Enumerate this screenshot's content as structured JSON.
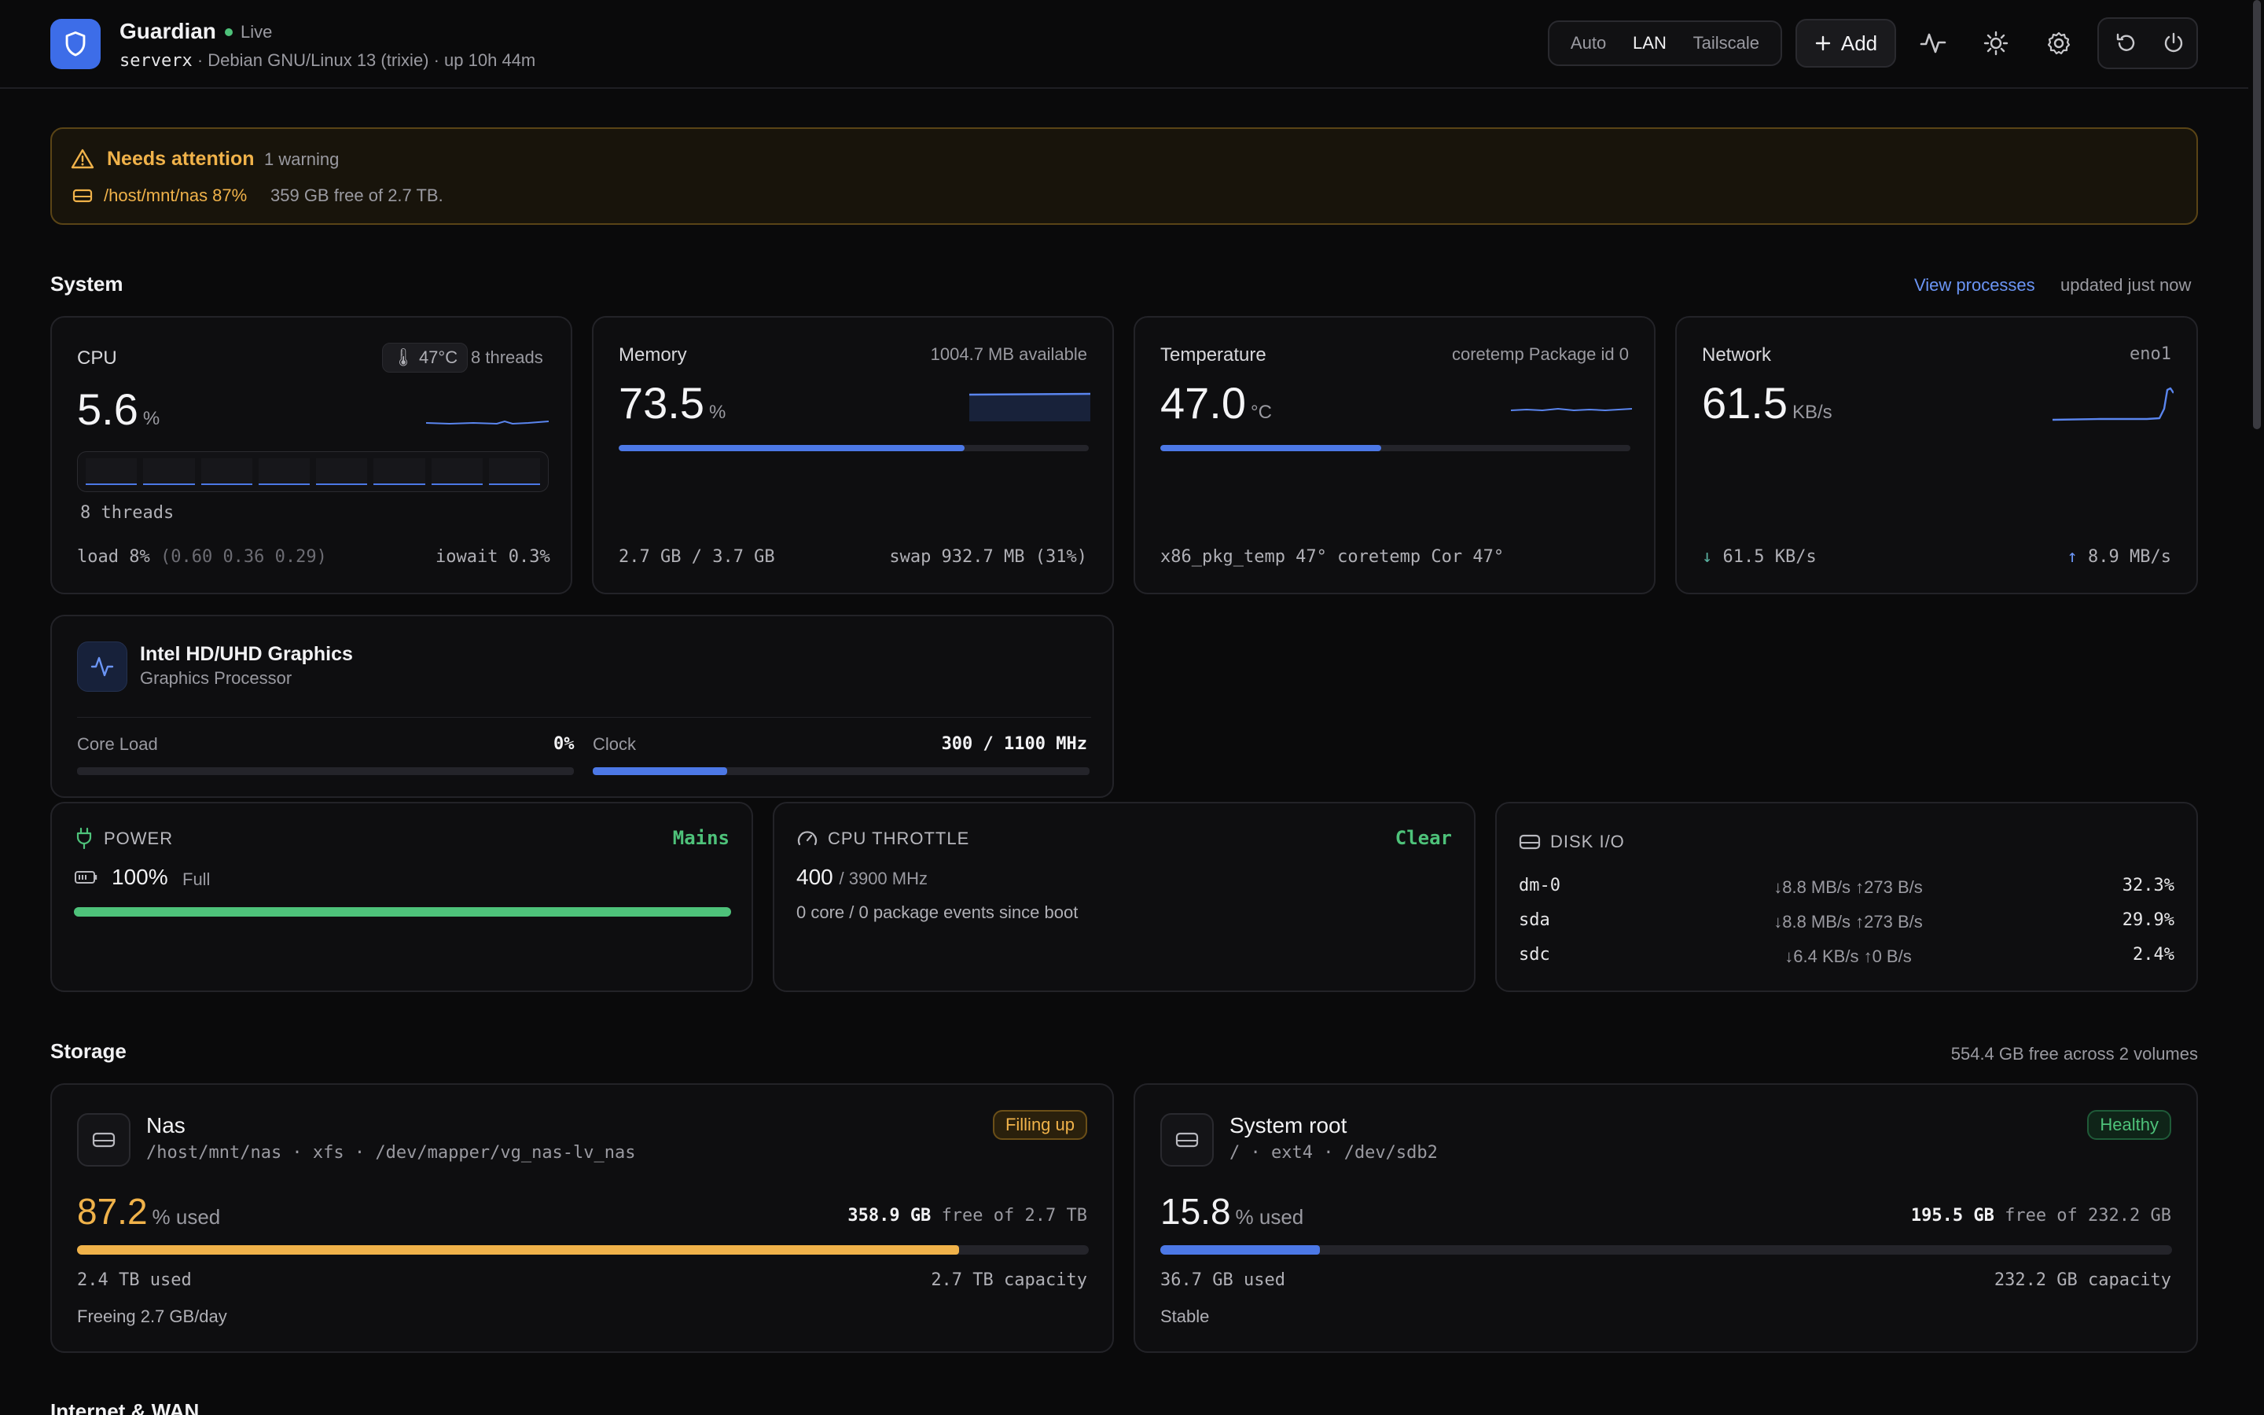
{
  "header": {
    "app_name": "Guardian",
    "status": "Live",
    "hostname": "serverx",
    "host_details": "· Debian GNU/Linux 13 (trixie) · up 10h 44m",
    "network_modes": [
      "Auto",
      "LAN",
      "Tailscale"
    ],
    "active_mode": "LAN",
    "add_label": "Add"
  },
  "alert": {
    "title": "Needs attention",
    "count": "1 warning",
    "path": "/host/mnt/nas 87%",
    "detail": "359 GB free of 2.7 TB."
  },
  "system": {
    "title": "System",
    "view_processes": "View processes",
    "updated": "updated just now"
  },
  "cpu": {
    "title": "CPU",
    "temp": "47°C",
    "threads": "8 threads",
    "value": "5.6",
    "unit": "%",
    "threads_label": "8 threads",
    "load": "load 8%",
    "load_avg": "(0.60 0.36 0.29)",
    "iowait": "iowait 0.3%"
  },
  "memory": {
    "title": "Memory",
    "available": "1004.7 MB available",
    "value": "73.5",
    "unit": "%",
    "percent": 73.5,
    "used": "2.7 GB / 3.7 GB",
    "swap": "swap 932.7 MB (31%)"
  },
  "temperature": {
    "title": "Temperature",
    "sensor": "coretemp Package id 0",
    "value": "47.0",
    "unit": "°C",
    "percent": 47,
    "detail": "x86_pkg_temp 47° coretemp Cor 47°"
  },
  "network": {
    "title": "Network",
    "iface": "eno1",
    "value": "61.5",
    "unit": "KB/s",
    "down": "61.5 KB/s",
    "up": "8.9 MB/s"
  },
  "gpu": {
    "name": "Intel HD/UHD Graphics",
    "type": "Graphics Processor",
    "core_load_label": "Core Load",
    "core_load": "0%",
    "clock_label": "Clock",
    "clock": "300 / 1100 MHz",
    "clock_fraction": 0.27
  },
  "power": {
    "title": "POWER",
    "source": "Mains",
    "value": "100%",
    "state": "Full",
    "percent": 100
  },
  "throttle": {
    "title": "CPU THROTTLE",
    "status": "Clear",
    "freq": "400",
    "max": "/ 3900 MHz",
    "events": "0 core / 0 package events since boot"
  },
  "disk_io": {
    "title": "DISK I/O",
    "rows": [
      {
        "dev": "dm-0",
        "rate": "↓8.8 MB/s ↑273 B/s",
        "pct": "32.3%"
      },
      {
        "dev": "sda",
        "rate": "↓8.8 MB/s ↑273 B/s",
        "pct": "29.9%"
      },
      {
        "dev": "sdc",
        "rate": "↓6.4 KB/s ↑0 B/s",
        "pct": "2.4%"
      }
    ]
  },
  "storage": {
    "title": "Storage",
    "summary": "554.4 GB free across 2 volumes",
    "volumes": [
      {
        "name": "Nas",
        "path": "/host/mnt/nas · xfs · /dev/mapper/vg_nas-lv_nas",
        "badge": "Filling up",
        "value": "87.2",
        "unit": "% used",
        "free_value": "358.9 GB",
        "free_rest": "free of 2.7 TB",
        "used": "2.4 TB used",
        "capacity": "2.7 TB capacity",
        "trend": "Freeing 2.7 GB/day",
        "percent": 87.2
      },
      {
        "name": "System root",
        "path": "/ · ext4 · /dev/sdb2",
        "badge": "Healthy",
        "value": "15.8",
        "unit": "% used",
        "free_value": "195.5 GB",
        "free_rest": "free of 232.2 GB",
        "used": "36.7 GB used",
        "capacity": "232.2 GB capacity",
        "trend": "Stable",
        "percent": 15.8
      }
    ]
  },
  "next_section": "Internet & WAN",
  "colors": {
    "accent": "#3d6de8",
    "warning": "#f0b24a",
    "ok": "#4ec27a"
  }
}
